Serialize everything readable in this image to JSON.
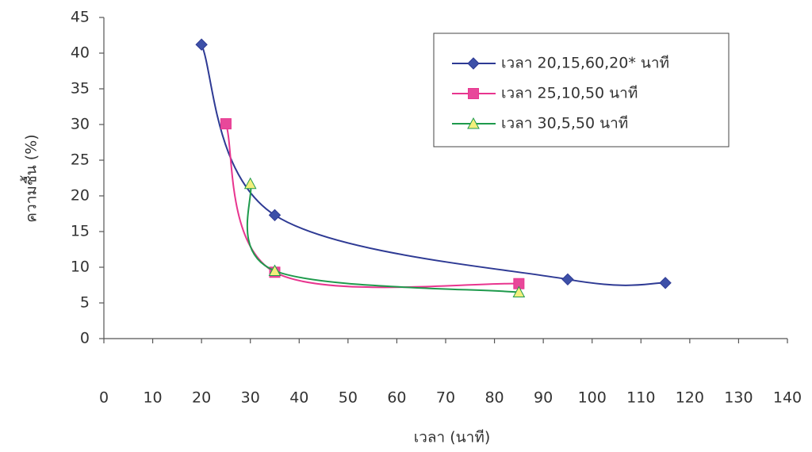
{
  "chart_data": {
    "type": "line",
    "x_label": "เวลา (นาที)",
    "y_label": "ความชื้น (%)",
    "xlim": [
      0,
      140
    ],
    "xticks": [
      0,
      10,
      20,
      30,
      40,
      50,
      60,
      70,
      80,
      90,
      100,
      110,
      120,
      130,
      140
    ],
    "ylim": [
      0,
      45
    ],
    "yticks": [
      0,
      5,
      10,
      15,
      20,
      25,
      30,
      35,
      40,
      45
    ],
    "smooth": true,
    "legend": "top-right",
    "series": [
      {
        "name": "เวลา 20,15,60,20* นาที",
        "color": "#2e3a94",
        "marker": "diamond",
        "marker_color": "#3d50a8",
        "x": [
          20,
          35,
          95,
          115
        ],
        "values": [
          41.2,
          17.3,
          8.3,
          7.8
        ]
      },
      {
        "name": "เวลา 25,10,50 นาที",
        "color": "#e8358f",
        "marker": "square",
        "marker_color": "#e8489a",
        "x": [
          25,
          35,
          85
        ],
        "values": [
          30.1,
          9.3,
          7.7
        ]
      },
      {
        "name": "เวลา 30,5,50 นาที",
        "color": "#1e9a4c",
        "marker": "triangle",
        "marker_color": "#f3ef7c",
        "x": [
          30,
          35,
          85
        ],
        "values": [
          21.7,
          9.5,
          6.5
        ]
      }
    ]
  }
}
